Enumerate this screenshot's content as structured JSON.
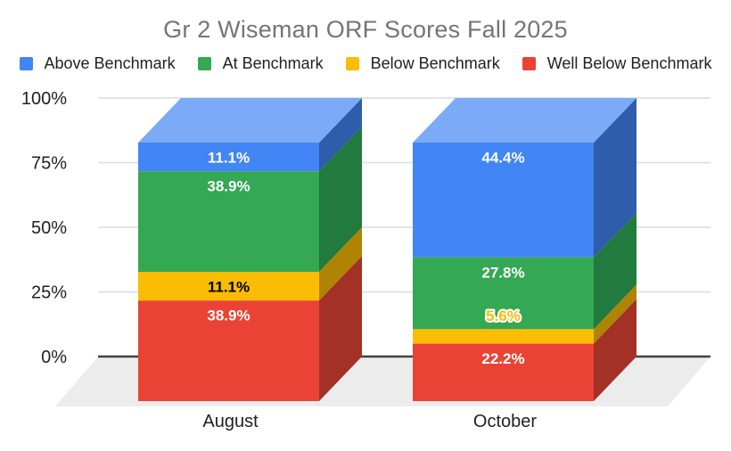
{
  "chart_data": {
    "type": "bar",
    "subtype": "3d-stacked-column",
    "stacking": "percent",
    "title": "Gr 2 Wiseman ORF Scores Fall 2025",
    "title_color": "#757575",
    "categories": [
      "August",
      "October"
    ],
    "series": [
      {
        "name": "Above Benchmark",
        "color": "#4285f4",
        "side_color": "#2e5dab",
        "top_color": "#7baaf7",
        "values": [
          11.1,
          44.4
        ],
        "labels": [
          "11.1%",
          "44.4%"
        ],
        "label_colors": [
          "#ffffff",
          "#ffffff"
        ]
      },
      {
        "name": "At Benchmark",
        "color": "#34a853",
        "side_color": "#217a3e",
        "values": [
          38.9,
          27.8
        ],
        "labels": [
          "38.9%",
          "27.8%"
        ],
        "label_colors": [
          "#ffffff",
          "#ffffff"
        ]
      },
      {
        "name": "Below Benchmark",
        "color": "#fbbc04",
        "side_color": "#b08403",
        "values": [
          11.1,
          5.6
        ],
        "labels": [
          "11.1%",
          "5.6%"
        ],
        "label_colors": [
          "#000000",
          "#fbbc04"
        ]
      },
      {
        "name": "Well Below Benchmark",
        "color": "#ea4335",
        "side_color": "#a43125",
        "values": [
          38.9,
          22.2
        ],
        "labels": [
          "38.9%",
          "22.2%"
        ],
        "label_colors": [
          "#ffffff",
          "#ffffff"
        ]
      }
    ],
    "y_ticks": [
      {
        "label": "100%",
        "value": 100
      },
      {
        "label": "75%",
        "value": 75
      },
      {
        "label": "50%",
        "value": 50
      },
      {
        "label": "25%",
        "value": 25
      },
      {
        "label": "0%",
        "value": 0
      }
    ],
    "ylim": [
      0,
      100
    ],
    "grid": true,
    "legend_position": "top",
    "gridline_color": "#dadce0",
    "axis_color": "#424242",
    "floor_color": "#ececec",
    "text_color": "#202124",
    "background": "#ffffff"
  }
}
